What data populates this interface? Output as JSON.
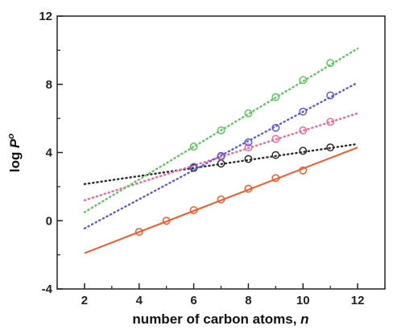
{
  "chart_data": {
    "type": "scatter",
    "title": "",
    "xlabel": "number of carbon atoms, ",
    "xlabel_italic": "n",
    "ylabel": "log ",
    "ylabel_italic": "P",
    "ylabel_sup": "o",
    "xlim": [
      1,
      13
    ],
    "ylim": [
      -4,
      12
    ],
    "xticks": [
      2,
      4,
      6,
      8,
      10,
      12
    ],
    "yticks": [
      -4,
      0,
      4,
      8,
      12
    ],
    "grid": false,
    "series": [
      {
        "color": "#f25a2a",
        "line_style": "solid",
        "points": [
          [
            4,
            -0.65
          ],
          [
            5,
            0.0
          ],
          [
            6,
            0.62
          ],
          [
            7,
            1.25
          ],
          [
            8,
            1.88
          ],
          [
            9,
            2.5
          ],
          [
            10,
            2.95
          ]
        ],
        "fit": [
          [
            2,
            -1.9
          ],
          [
            12,
            4.3
          ]
        ]
      },
      {
        "color": "#2b2b2b",
        "line_style": "dotted",
        "points": [
          [
            6,
            3.1
          ],
          [
            7,
            3.35
          ],
          [
            8,
            3.62
          ],
          [
            9,
            3.85
          ],
          [
            10,
            4.1
          ],
          [
            11,
            4.3
          ]
        ],
        "fit": [
          [
            2,
            2.15
          ],
          [
            12,
            4.5
          ]
        ]
      },
      {
        "color": "#f2669a",
        "line_style": "dotted",
        "points": [
          [
            6,
            3.15
          ],
          [
            7,
            3.75
          ],
          [
            8,
            4.3
          ],
          [
            9,
            4.8
          ],
          [
            10,
            5.3
          ],
          [
            11,
            5.8
          ]
        ],
        "fit": [
          [
            2,
            1.2
          ],
          [
            12,
            6.3
          ]
        ]
      },
      {
        "color": "#5b5bdc",
        "line_style": "dotted",
        "points": [
          [
            6,
            3.15
          ],
          [
            7,
            3.8
          ],
          [
            8,
            4.6
          ],
          [
            9,
            5.45
          ],
          [
            10,
            6.4
          ],
          [
            11,
            7.35
          ]
        ],
        "fit": [
          [
            2,
            -0.45
          ],
          [
            12,
            8.1
          ]
        ]
      },
      {
        "color": "#5cc85c",
        "line_style": "dotted",
        "points": [
          [
            6,
            4.35
          ],
          [
            7,
            5.3
          ],
          [
            8,
            6.3
          ],
          [
            9,
            7.25
          ],
          [
            10,
            8.25
          ],
          [
            11,
            9.25
          ]
        ],
        "fit": [
          [
            2,
            0.5
          ],
          [
            12,
            10.1
          ]
        ]
      }
    ]
  }
}
